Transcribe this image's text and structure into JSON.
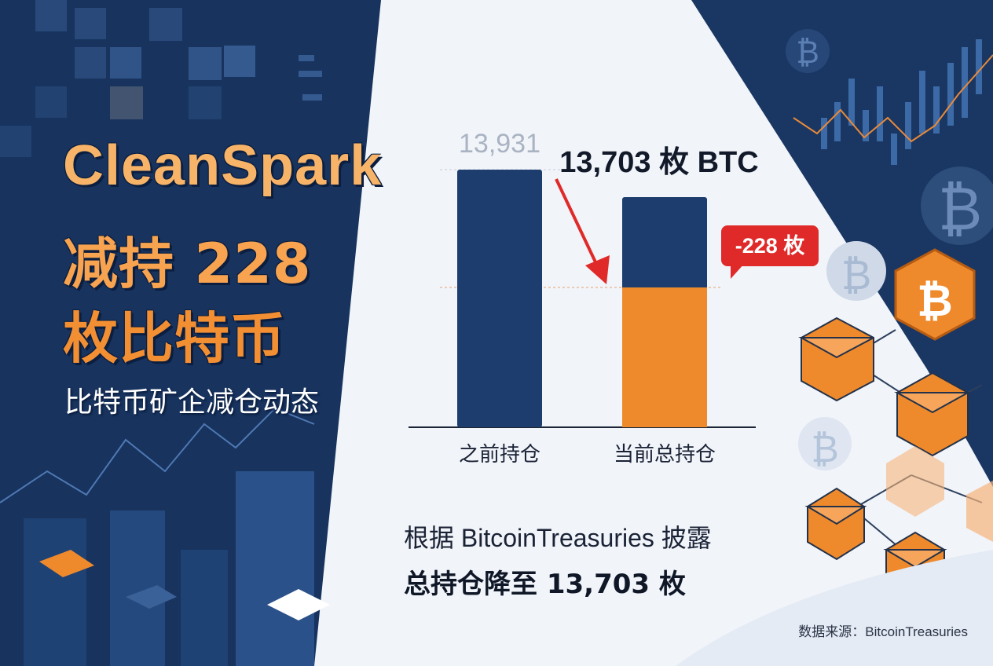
{
  "headline": {
    "line1": "CleanSpark",
    "line2": "减持 228",
    "line3": "枚比特币",
    "subtitle": "比特币矿企减仓动态"
  },
  "chart_data": {
    "type": "bar",
    "categories": [
      "之前持仓",
      "当前总持仓"
    ],
    "values": [
      13931,
      13703
    ],
    "value_labels": [
      "13,931",
      "13,703 枚 BTC"
    ],
    "change_label": "-228 枚",
    "change": -228,
    "colors": {
      "previous": "#1c3d6e",
      "remaining": "#1c3d6e",
      "reduced_part": "#ef8a2c",
      "callout": "#e02a2a"
    }
  },
  "notes": {
    "line1": "根据 BitcoinTreasuries 披露",
    "line2": "总持仓降至 13,703 枚"
  },
  "source": "数据来源：BitcoinTreasuries",
  "decor": {
    "coin_symbol": "₿",
    "icons": [
      "bitcoin-coin-icon",
      "hexagon-block-icon",
      "candlestick-chart-icon"
    ]
  }
}
